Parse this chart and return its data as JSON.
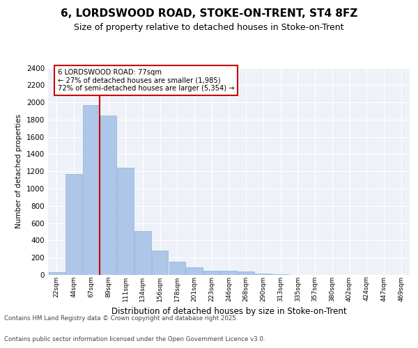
{
  "title1": "6, LORDSWOOD ROAD, STOKE-ON-TRENT, ST4 8FZ",
  "title2": "Size of property relative to detached houses in Stoke-on-Trent",
  "xlabel": "Distribution of detached houses by size in Stoke-on-Trent",
  "ylabel": "Number of detached properties",
  "categories": [
    "22sqm",
    "44sqm",
    "67sqm",
    "89sqm",
    "111sqm",
    "134sqm",
    "156sqm",
    "178sqm",
    "201sqm",
    "223sqm",
    "246sqm",
    "268sqm",
    "290sqm",
    "313sqm",
    "335sqm",
    "357sqm",
    "380sqm",
    "402sqm",
    "424sqm",
    "447sqm",
    "469sqm"
  ],
  "values": [
    30,
    1170,
    1970,
    1850,
    1240,
    510,
    280,
    155,
    85,
    50,
    50,
    40,
    20,
    8,
    3,
    3,
    2,
    2,
    1,
    1,
    1
  ],
  "bar_color": "#aec6e8",
  "bar_edge_color": "#8ab4d8",
  "red_line_x": 2.5,
  "annotation_title": "6 LORDSWOOD ROAD: 77sqm",
  "annotation_line1": "← 27% of detached houses are smaller (1,985)",
  "annotation_line2": "72% of semi-detached houses are larger (5,354) →",
  "annotation_box_color": "#ffffff",
  "annotation_box_edge": "#cc0000",
  "ylim": [
    0,
    2400
  ],
  "yticks": [
    0,
    200,
    400,
    600,
    800,
    1000,
    1200,
    1400,
    1600,
    1800,
    2000,
    2200,
    2400
  ],
  "background_color": "#eef2f8",
  "grid_color": "#ffffff",
  "title_fontsize": 11,
  "subtitle_fontsize": 9,
  "footer1": "Contains HM Land Registry data © Crown copyright and database right 2025.",
  "footer2": "Contains public sector information licensed under the Open Government Licence v3.0."
}
